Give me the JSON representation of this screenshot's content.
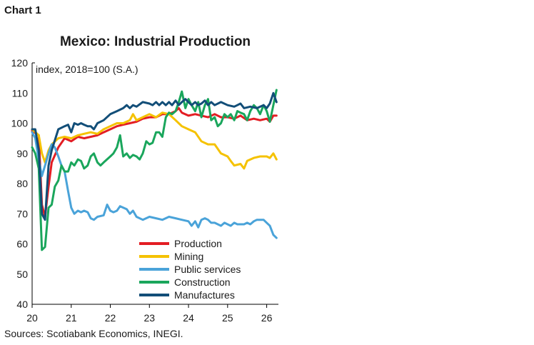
{
  "header": {
    "chart_label": "Chart 1"
  },
  "footer": {
    "source": "Sources: Scotiabank Economics, INEGI."
  },
  "chart_data": {
    "type": "line",
    "title": "Mexico: Industrial Production",
    "ylabel": "index, 2018=100  (S.A.)",
    "xlabel": "",
    "ylim": [
      40,
      120
    ],
    "yticks": [
      40,
      50,
      60,
      70,
      80,
      90,
      100,
      110,
      120
    ],
    "xlim": [
      2020,
      2026.3
    ],
    "xticks": [
      {
        "label": "20",
        "value": 2020
      },
      {
        "label": "21",
        "value": 2021
      },
      {
        "label": "22",
        "value": 2022
      },
      {
        "label": "23",
        "value": 2023
      },
      {
        "label": "24",
        "value": 2024
      },
      {
        "label": "25",
        "value": 2025
      },
      {
        "label": "26",
        "value": 2026
      }
    ],
    "grid": false,
    "legend_position": "bottom-center",
    "series": [
      {
        "name": "Production",
        "color": "#e31d23",
        "points": [
          [
            2020.0,
            97.5
          ],
          [
            2020.17,
            96
          ],
          [
            2020.25,
            73
          ],
          [
            2020.33,
            69
          ],
          [
            2020.42,
            79
          ],
          [
            2020.5,
            87
          ],
          [
            2020.67,
            92
          ],
          [
            2020.83,
            95
          ],
          [
            2021.0,
            94
          ],
          [
            2021.17,
            95.5
          ],
          [
            2021.33,
            95
          ],
          [
            2021.5,
            95.5
          ],
          [
            2021.67,
            96
          ],
          [
            2021.83,
            97
          ],
          [
            2022.0,
            98
          ],
          [
            2022.17,
            99
          ],
          [
            2022.33,
            99.5
          ],
          [
            2022.5,
            100
          ],
          [
            2022.67,
            100.5
          ],
          [
            2022.83,
            101.5
          ],
          [
            2023.0,
            102
          ],
          [
            2023.17,
            102
          ],
          [
            2023.33,
            103
          ],
          [
            2023.5,
            103
          ],
          [
            2023.67,
            104
          ],
          [
            2023.75,
            105
          ],
          [
            2023.83,
            103.5
          ],
          [
            2024.0,
            102.5
          ],
          [
            2024.17,
            103
          ],
          [
            2024.33,
            102.5
          ],
          [
            2024.5,
            102
          ],
          [
            2024.67,
            103
          ],
          [
            2024.83,
            102
          ],
          [
            2025.0,
            102
          ],
          [
            2025.17,
            101.5
          ],
          [
            2025.33,
            102.5
          ],
          [
            2025.5,
            101
          ],
          [
            2025.67,
            101.5
          ],
          [
            2025.83,
            101
          ],
          [
            2026.0,
            101.5
          ],
          [
            2026.08,
            100.5
          ],
          [
            2026.17,
            102.5
          ],
          [
            2026.25,
            102.5
          ]
        ]
      },
      {
        "name": "Mining",
        "color": "#f5c200",
        "points": [
          [
            2020.0,
            98
          ],
          [
            2020.17,
            96
          ],
          [
            2020.25,
            90
          ],
          [
            2020.33,
            87
          ],
          [
            2020.42,
            91
          ],
          [
            2020.5,
            93
          ],
          [
            2020.67,
            95
          ],
          [
            2020.83,
            95.5
          ],
          [
            2021.0,
            95
          ],
          [
            2021.17,
            96
          ],
          [
            2021.33,
            96.5
          ],
          [
            2021.5,
            97
          ],
          [
            2021.67,
            96.5
          ],
          [
            2021.83,
            98
          ],
          [
            2022.0,
            99
          ],
          [
            2022.17,
            100
          ],
          [
            2022.33,
            100
          ],
          [
            2022.5,
            101
          ],
          [
            2022.58,
            103
          ],
          [
            2022.67,
            101
          ],
          [
            2022.83,
            102
          ],
          [
            2023.0,
            103
          ],
          [
            2023.17,
            102
          ],
          [
            2023.33,
            103.5
          ],
          [
            2023.5,
            103
          ],
          [
            2023.67,
            101
          ],
          [
            2023.83,
            99
          ],
          [
            2024.0,
            98
          ],
          [
            2024.17,
            97
          ],
          [
            2024.33,
            94
          ],
          [
            2024.5,
            93
          ],
          [
            2024.67,
            93
          ],
          [
            2024.83,
            90
          ],
          [
            2025.0,
            89
          ],
          [
            2025.08,
            87.5
          ],
          [
            2025.17,
            86
          ],
          [
            2025.33,
            86.5
          ],
          [
            2025.42,
            85
          ],
          [
            2025.5,
            87.5
          ],
          [
            2025.67,
            88.5
          ],
          [
            2025.83,
            89
          ],
          [
            2026.0,
            89
          ],
          [
            2026.08,
            88.5
          ],
          [
            2026.17,
            90
          ],
          [
            2026.25,
            88
          ]
        ]
      },
      {
        "name": "Public services",
        "color": "#4aa3d9",
        "points": [
          [
            2020.0,
            97
          ],
          [
            2020.08,
            95
          ],
          [
            2020.17,
            88
          ],
          [
            2020.25,
            82.5
          ],
          [
            2020.33,
            86
          ],
          [
            2020.42,
            90
          ],
          [
            2020.5,
            93
          ],
          [
            2020.58,
            92
          ],
          [
            2020.67,
            89
          ],
          [
            2020.75,
            86
          ],
          [
            2020.83,
            84
          ],
          [
            2020.92,
            77.5
          ],
          [
            2021.0,
            72
          ],
          [
            2021.08,
            70
          ],
          [
            2021.17,
            71
          ],
          [
            2021.25,
            70.5
          ],
          [
            2021.33,
            71
          ],
          [
            2021.42,
            70.5
          ],
          [
            2021.5,
            68.5
          ],
          [
            2021.58,
            68
          ],
          [
            2021.67,
            69
          ],
          [
            2021.83,
            69.5
          ],
          [
            2021.92,
            73
          ],
          [
            2022.0,
            71
          ],
          [
            2022.08,
            70.5
          ],
          [
            2022.17,
            71
          ],
          [
            2022.25,
            72.5
          ],
          [
            2022.42,
            71.5
          ],
          [
            2022.5,
            70
          ],
          [
            2022.58,
            71
          ],
          [
            2022.67,
            69
          ],
          [
            2022.83,
            68
          ],
          [
            2023.0,
            69
          ],
          [
            2023.17,
            68.5
          ],
          [
            2023.33,
            68
          ],
          [
            2023.5,
            69
          ],
          [
            2023.67,
            68.5
          ],
          [
            2023.83,
            68
          ],
          [
            2024.0,
            67.5
          ],
          [
            2024.08,
            66
          ],
          [
            2024.17,
            67.5
          ],
          [
            2024.25,
            65.5
          ],
          [
            2024.33,
            68
          ],
          [
            2024.42,
            68.5
          ],
          [
            2024.5,
            68
          ],
          [
            2024.58,
            67
          ],
          [
            2024.67,
            67
          ],
          [
            2024.83,
            66
          ],
          [
            2024.92,
            67
          ],
          [
            2025.0,
            66.5
          ],
          [
            2025.08,
            66
          ],
          [
            2025.17,
            67
          ],
          [
            2025.25,
            66.5
          ],
          [
            2025.33,
            66.5
          ],
          [
            2025.42,
            66.5
          ],
          [
            2025.5,
            67
          ],
          [
            2025.58,
            66.5
          ],
          [
            2025.67,
            67.5
          ],
          [
            2025.75,
            68
          ],
          [
            2025.83,
            68
          ],
          [
            2025.92,
            68
          ],
          [
            2026.0,
            67
          ],
          [
            2026.08,
            66
          ],
          [
            2026.17,
            63
          ],
          [
            2026.25,
            62
          ]
        ]
      },
      {
        "name": "Construction",
        "color": "#1aa65c",
        "points": [
          [
            2020.0,
            92
          ],
          [
            2020.08,
            90
          ],
          [
            2020.17,
            85
          ],
          [
            2020.25,
            58
          ],
          [
            2020.33,
            59
          ],
          [
            2020.42,
            72
          ],
          [
            2020.5,
            73
          ],
          [
            2020.58,
            79
          ],
          [
            2020.67,
            81
          ],
          [
            2020.75,
            86
          ],
          [
            2020.83,
            84
          ],
          [
            2020.92,
            84
          ],
          [
            2021.0,
            87
          ],
          [
            2021.08,
            86
          ],
          [
            2021.17,
            88
          ],
          [
            2021.25,
            87.5
          ],
          [
            2021.33,
            85
          ],
          [
            2021.42,
            86
          ],
          [
            2021.5,
            89
          ],
          [
            2021.58,
            90
          ],
          [
            2021.67,
            87
          ],
          [
            2021.75,
            86
          ],
          [
            2021.83,
            87
          ],
          [
            2022.0,
            89
          ],
          [
            2022.08,
            90
          ],
          [
            2022.17,
            92
          ],
          [
            2022.25,
            96
          ],
          [
            2022.33,
            89
          ],
          [
            2022.42,
            90
          ],
          [
            2022.5,
            88.5
          ],
          [
            2022.58,
            89.5
          ],
          [
            2022.67,
            89
          ],
          [
            2022.75,
            88
          ],
          [
            2022.83,
            90
          ],
          [
            2022.92,
            94
          ],
          [
            2023.0,
            93
          ],
          [
            2023.08,
            93.5
          ],
          [
            2023.17,
            97
          ],
          [
            2023.25,
            97
          ],
          [
            2023.33,
            95.5
          ],
          [
            2023.42,
            102
          ],
          [
            2023.5,
            103.5
          ],
          [
            2023.58,
            103
          ],
          [
            2023.67,
            104
          ],
          [
            2023.75,
            107
          ],
          [
            2023.83,
            110.5
          ],
          [
            2023.92,
            105
          ],
          [
            2024.0,
            108
          ],
          [
            2024.08,
            106
          ],
          [
            2024.17,
            104
          ],
          [
            2024.25,
            107
          ],
          [
            2024.33,
            102
          ],
          [
            2024.42,
            106
          ],
          [
            2024.5,
            108
          ],
          [
            2024.58,
            101
          ],
          [
            2024.67,
            102
          ],
          [
            2024.75,
            99
          ],
          [
            2024.83,
            100
          ],
          [
            2024.92,
            103
          ],
          [
            2025.0,
            102
          ],
          [
            2025.08,
            103
          ],
          [
            2025.17,
            101
          ],
          [
            2025.25,
            104
          ],
          [
            2025.33,
            103.5
          ],
          [
            2025.42,
            103
          ],
          [
            2025.5,
            101
          ],
          [
            2025.58,
            104
          ],
          [
            2025.67,
            106
          ],
          [
            2025.75,
            105
          ],
          [
            2025.83,
            103
          ],
          [
            2025.92,
            106
          ],
          [
            2026.0,
            104
          ],
          [
            2026.08,
            100.5
          ],
          [
            2026.17,
            106
          ],
          [
            2026.25,
            111
          ]
        ]
      },
      {
        "name": "Manufactures",
        "color": "#124e78",
        "points": [
          [
            2020.0,
            98
          ],
          [
            2020.08,
            98
          ],
          [
            2020.17,
            91
          ],
          [
            2020.25,
            70
          ],
          [
            2020.33,
            68
          ],
          [
            2020.42,
            86
          ],
          [
            2020.5,
            91
          ],
          [
            2020.67,
            98
          ],
          [
            2020.83,
            99
          ],
          [
            2020.92,
            99.5
          ],
          [
            2021.0,
            97
          ],
          [
            2021.08,
            100
          ],
          [
            2021.17,
            99.5
          ],
          [
            2021.25,
            100
          ],
          [
            2021.33,
            99.5
          ],
          [
            2021.42,
            99
          ],
          [
            2021.5,
            99
          ],
          [
            2021.58,
            98
          ],
          [
            2021.67,
            100
          ],
          [
            2021.83,
            101
          ],
          [
            2022.0,
            103
          ],
          [
            2022.17,
            104
          ],
          [
            2022.33,
            105
          ],
          [
            2022.42,
            106
          ],
          [
            2022.5,
            105
          ],
          [
            2022.58,
            106
          ],
          [
            2022.67,
            105.5
          ],
          [
            2022.83,
            107
          ],
          [
            2023.0,
            106.5
          ],
          [
            2023.08,
            106
          ],
          [
            2023.17,
            107
          ],
          [
            2023.25,
            106
          ],
          [
            2023.33,
            107
          ],
          [
            2023.42,
            106
          ],
          [
            2023.5,
            107
          ],
          [
            2023.58,
            106
          ],
          [
            2023.67,
            107.5
          ],
          [
            2023.75,
            106
          ],
          [
            2023.83,
            107
          ],
          [
            2023.92,
            108
          ],
          [
            2024.0,
            107
          ],
          [
            2024.08,
            106
          ],
          [
            2024.17,
            107
          ],
          [
            2024.25,
            106
          ],
          [
            2024.33,
            106.5
          ],
          [
            2024.42,
            107.5
          ],
          [
            2024.5,
            106
          ],
          [
            2024.58,
            107
          ],
          [
            2024.67,
            106
          ],
          [
            2024.83,
            107
          ],
          [
            2025.0,
            106
          ],
          [
            2025.17,
            105.5
          ],
          [
            2025.25,
            106
          ],
          [
            2025.33,
            106.5
          ],
          [
            2025.42,
            105
          ],
          [
            2025.58,
            105.5
          ],
          [
            2025.75,
            105
          ],
          [
            2025.92,
            106
          ],
          [
            2026.0,
            105
          ],
          [
            2026.08,
            106.5
          ],
          [
            2026.17,
            110
          ],
          [
            2026.25,
            107
          ]
        ]
      }
    ]
  }
}
